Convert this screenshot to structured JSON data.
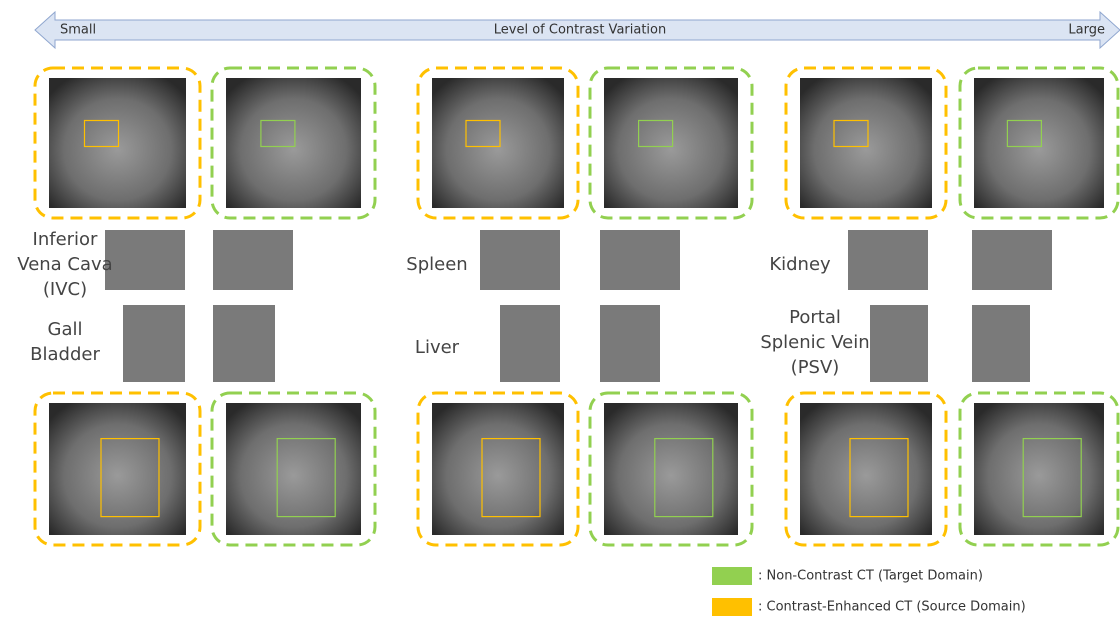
{
  "arrow": {
    "left": "Small",
    "title": "Level of Contrast Variation",
    "right": "Large"
  },
  "labels": [
    {
      "lines": [
        "Inferior",
        "Vena Cava",
        "(IVC)"
      ]
    },
    {
      "lines": [
        "Gall",
        "Bladder"
      ]
    },
    {
      "lines": [
        "Spleen"
      ]
    },
    {
      "lines": [
        "Liver"
      ]
    },
    {
      "lines": [
        "Kidney"
      ]
    },
    {
      "lines": [
        "Portal",
        "Splenic Vein",
        "(PSV)"
      ]
    }
  ],
  "legend": [
    {
      "text": ": Non-Contrast CT (Target Domain)",
      "color": "#92d050"
    },
    {
      "text": ": Contrast-Enhanced CT (Source Domain)",
      "color": "#ffc000"
    }
  ]
}
